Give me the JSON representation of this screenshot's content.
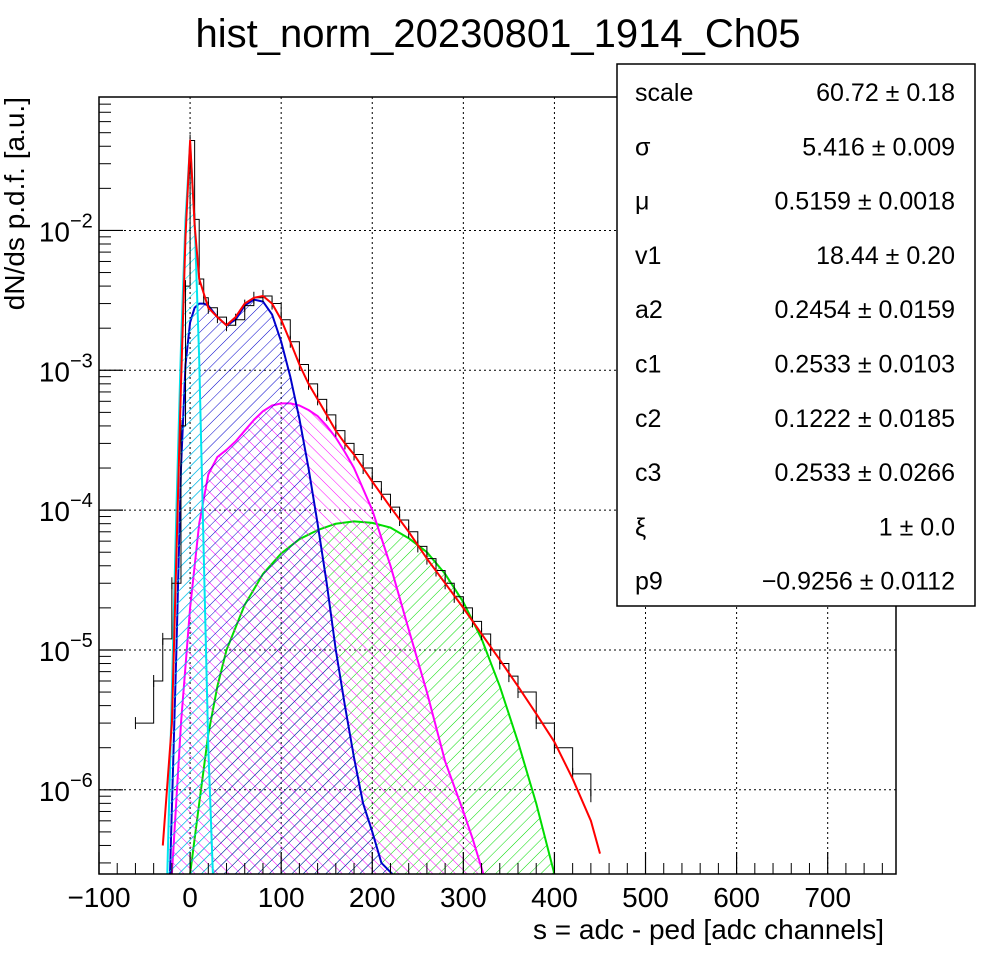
{
  "chart_data": {
    "type": "line",
    "title": "hist_norm_20230801_1914_Ch05",
    "xlabel": "s = adc - ped [adc channels]",
    "ylabel": "dN/ds p.d.f. [a.u.]",
    "xlim": [
      -100,
      775
    ],
    "ylim": [
      2.5e-07,
      0.09
    ],
    "yscale": "log",
    "grid": true,
    "x_ticks": [
      {
        "value": -100,
        "label": "−100"
      },
      {
        "value": 0,
        "label": "0"
      },
      {
        "value": 100,
        "label": "100"
      },
      {
        "value": 200,
        "label": "200"
      },
      {
        "value": 300,
        "label": "300"
      },
      {
        "value": 400,
        "label": "400"
      },
      {
        "value": 500,
        "label": "500"
      },
      {
        "value": 600,
        "label": "600"
      },
      {
        "value": 700,
        "label": "700"
      }
    ],
    "y_ticks": [
      {
        "value": 0.01,
        "base": "10",
        "exp": "−2"
      },
      {
        "value": 0.001,
        "base": "10",
        "exp": "−3"
      },
      {
        "value": 0.0001,
        "base": "10",
        "exp": "−4"
      },
      {
        "value": 1e-05,
        "base": "10",
        "exp": "−5"
      },
      {
        "value": 1e-06,
        "base": "10",
        "exp": "−6"
      }
    ],
    "stats_box": {
      "location": "top-right",
      "rows": [
        {
          "name": "scale",
          "value": "60.72 ± 0.18"
        },
        {
          "name": "σ",
          "value": "5.416 ± 0.009"
        },
        {
          "name": "μ",
          "value": "0.5159 ± 0.0018"
        },
        {
          "name": "v1",
          "value": "18.44 ± 0.20"
        },
        {
          "name": "a2",
          "value": "0.2454 ± 0.0159"
        },
        {
          "name": "c1",
          "value": "0.2533 ± 0.0103"
        },
        {
          "name": "c2",
          "value": "0.1222 ± 0.0185"
        },
        {
          "name": "c3",
          "value": "0.2533 ± 0.0266"
        },
        {
          "name": "ξ",
          "value": "1 ± 0.0"
        },
        {
          "name": "p9",
          "value": "−0.9256 ± 0.0112"
        }
      ]
    },
    "series": [
      {
        "color": "#000000",
        "style": "histogram",
        "x": [
          -60,
          -40,
          -30,
          -20,
          -10,
          -5,
          0,
          5,
          10,
          15,
          20,
          30,
          40,
          50,
          60,
          70,
          80,
          90,
          100,
          110,
          120,
          130,
          140,
          150,
          160,
          170,
          180,
          190,
          200,
          210,
          220,
          230,
          240,
          250,
          260,
          270,
          280,
          290,
          300,
          310,
          320,
          330,
          340,
          350,
          360,
          380,
          400,
          420,
          440
        ],
        "values": [
          3e-06,
          6e-06,
          1.2e-05,
          3e-05,
          0.0004,
          0.004,
          0.044,
          0.012,
          0.0045,
          0.0033,
          0.0028,
          0.0024,
          0.0021,
          0.0023,
          0.0029,
          0.0033,
          0.0034,
          0.003,
          0.0023,
          0.0016,
          0.0011,
          0.0008,
          0.00062,
          0.00048,
          0.00037,
          0.0003,
          0.00025,
          0.0002,
          0.00016,
          0.00013,
          0.000105,
          8.5e-05,
          7e-05,
          5.5e-05,
          4.5e-05,
          3.7e-05,
          3e-05,
          2.4e-05,
          2e-05,
          1.6e-05,
          1.3e-05,
          1e-05,
          8e-06,
          6.5e-06,
          5e-06,
          3e-06,
          2e-06,
          1.3e-06,
          9e-07
        ]
      },
      {
        "color": "#ff0000",
        "style": "line",
        "x": [
          -30,
          -20,
          -10,
          -5,
          0,
          5,
          10,
          20,
          30,
          40,
          50,
          60,
          70,
          80,
          90,
          100,
          110,
          120,
          130,
          140,
          150,
          160,
          170,
          180,
          190,
          200,
          220,
          240,
          260,
          280,
          300,
          320,
          340,
          360,
          380,
          400,
          420,
          440,
          450
        ],
        "values": [
          4e-07,
          3e-06,
          0.0008,
          0.009,
          0.044,
          0.011,
          0.0045,
          0.0028,
          0.0024,
          0.0021,
          0.0024,
          0.003,
          0.0033,
          0.0034,
          0.003,
          0.0023,
          0.0016,
          0.0011,
          0.0008,
          0.00062,
          0.00048,
          0.00037,
          0.0003,
          0.00025,
          0.0002,
          0.00016,
          0.000105,
          7e-05,
          4.5e-05,
          3e-05,
          2e-05,
          1.3e-05,
          8.5e-06,
          5.5e-06,
          3.5e-06,
          2.2e-06,
          1.2e-06,
          6e-07,
          3.5e-07
        ]
      },
      {
        "color": "#00e5ee",
        "style": "filled-hatched",
        "x": [
          -25,
          -20,
          -15,
          -10,
          -5,
          0,
          5,
          10,
          15,
          20,
          25
        ],
        "values": [
          2.5e-07,
          5e-06,
          0.0001,
          0.0015,
          0.012,
          0.042,
          0.012,
          0.0012,
          5e-05,
          2e-06,
          2.5e-07
        ]
      },
      {
        "color": "#0000cc",
        "style": "filled-hatched",
        "x": [
          -22,
          -15,
          -10,
          -5,
          0,
          5,
          10,
          15,
          20,
          30,
          40,
          50,
          60,
          70,
          80,
          90,
          100,
          110,
          120,
          130,
          140,
          150,
          160,
          170,
          180,
          190,
          200,
          210,
          222
        ],
        "values": [
          2.5e-07,
          1e-05,
          0.0002,
          0.0011,
          0.0022,
          0.0028,
          0.003,
          0.003,
          0.0029,
          0.0024,
          0.0021,
          0.0023,
          0.0029,
          0.0032,
          0.0031,
          0.0025,
          0.0016,
          0.0009,
          0.00045,
          0.0002,
          8e-05,
          3e-05,
          1e-05,
          4e-06,
          1.7e-06,
          8e-07,
          5e-07,
          3e-07,
          2.5e-07
        ]
      },
      {
        "color": "#ff00ff",
        "style": "filled-hatched",
        "x": [
          -20,
          -10,
          0,
          10,
          20,
          30,
          40,
          50,
          60,
          70,
          80,
          90,
          100,
          110,
          120,
          130,
          140,
          150,
          160,
          170,
          180,
          200,
          220,
          240,
          260,
          280,
          300,
          310,
          322
        ],
        "values": [
          2.5e-07,
          3e-06,
          2e-05,
          8e-05,
          0.00018,
          0.00024,
          0.00027,
          0.00031,
          0.00037,
          0.00044,
          0.00051,
          0.00056,
          0.00058,
          0.00058,
          0.00056,
          0.00052,
          0.00047,
          0.0004,
          0.00033,
          0.00026,
          0.0002,
          0.0001,
          4e-05,
          1.4e-05,
          5e-06,
          1.6e-06,
          7e-07,
          4.5e-07,
          2.5e-07
        ]
      },
      {
        "color": "#00dd00",
        "style": "filled-hatched",
        "x": [
          0,
          10,
          20,
          30,
          40,
          60,
          80,
          100,
          120,
          140,
          160,
          180,
          200,
          220,
          240,
          260,
          280,
          300,
          320,
          340,
          360,
          380,
          400
        ],
        "values": [
          2.5e-07,
          8e-07,
          2.5e-06,
          5.5e-06,
          1e-05,
          2.1e-05,
          3.5e-05,
          4.9e-05,
          6.2e-05,
          7.2e-05,
          8e-05,
          8.3e-05,
          8.1e-05,
          7.5e-05,
          6.3e-05,
          5e-05,
          3.5e-05,
          2.2e-05,
          1.2e-05,
          5.5e-06,
          2.2e-06,
          8e-07,
          2.5e-07
        ]
      }
    ]
  }
}
